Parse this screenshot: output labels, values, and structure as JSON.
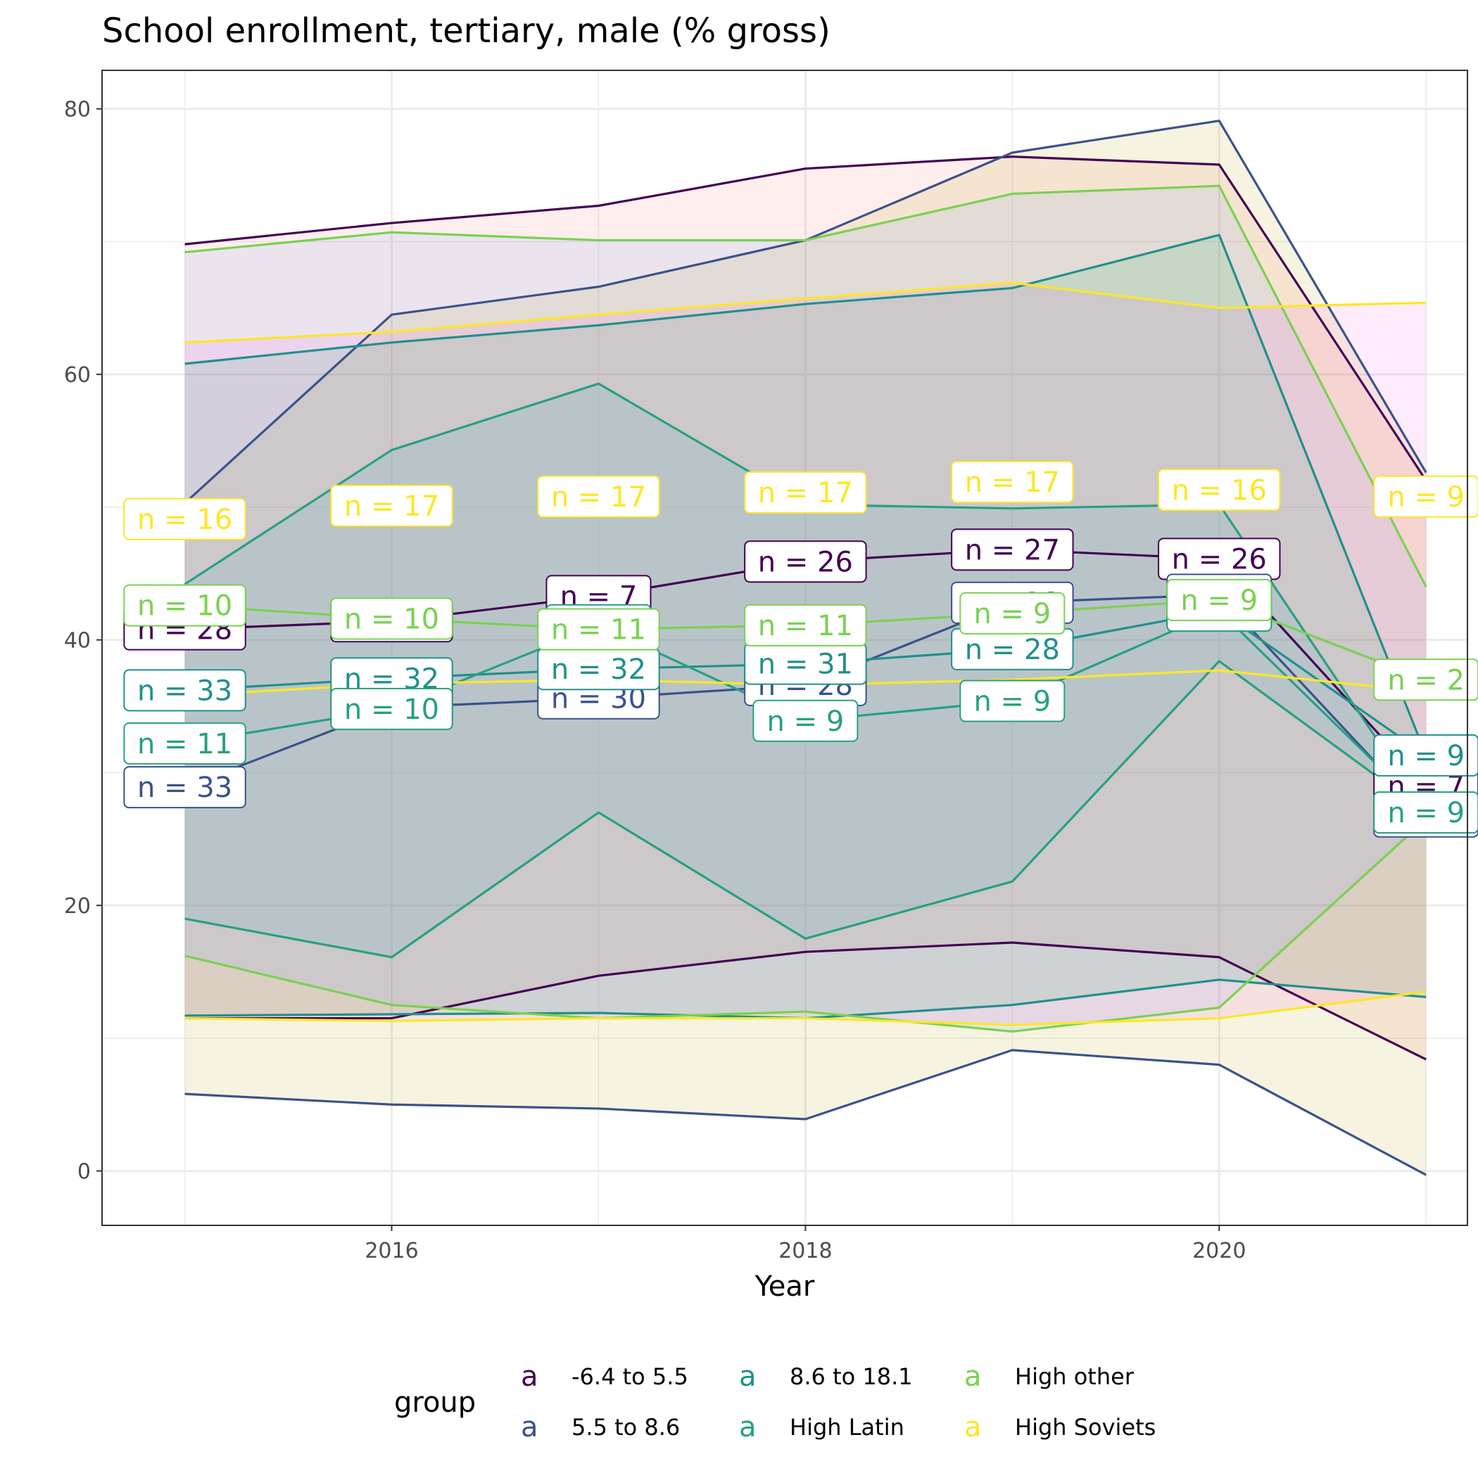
{
  "chart_data": {
    "type": "line",
    "title": "School enrollment, tertiary, male (% gross)",
    "xlabel": "Year",
    "ylabel": "",
    "xlim": [
      2014.6,
      2021.2
    ],
    "ylim": [
      -4.1,
      82.9
    ],
    "x_ticks": [
      2016,
      2018,
      2020
    ],
    "y_ticks": [
      0,
      20,
      40,
      60,
      80
    ],
    "grid": true,
    "legend": {
      "title": "group",
      "position": "bottom",
      "key_glyph": "a",
      "entries": [
        "-6.4 to 5.5",
        "5.5 to 8.6",
        "8.6 to 18.1",
        "High Latin",
        "High other",
        "High Soviets"
      ]
    },
    "x": [
      2015,
      2016,
      2017,
      2018,
      2019,
      2020,
      2021
    ],
    "series": [
      {
        "name": "-6.4 to 5.5",
        "color": "#440154",
        "fill": "#f8766d",
        "mean": [
          40.8,
          41.4,
          43.3,
          45.9,
          46.8,
          46.1,
          29.0
        ],
        "upper": [
          69.8,
          71.4,
          72.7,
          75.5,
          76.4,
          75.8,
          52.0
        ],
        "lower": [
          11.5,
          11.5,
          14.7,
          16.5,
          17.2,
          16.1,
          8.4
        ],
        "n": [
          28,
          28,
          7,
          26,
          27,
          26,
          7
        ]
      },
      {
        "name": "5.5 to 8.6",
        "color": "#3b528b",
        "fill": "#b79f00",
        "mean": [
          28.9,
          34.9,
          35.6,
          36.6,
          42.8,
          43.4,
          26.7
        ],
        "upper": [
          50.3,
          64.5,
          66.6,
          70.1,
          76.7,
          79.1,
          52.6
        ],
        "lower": [
          5.8,
          5.0,
          4.7,
          3.9,
          9.1,
          8.0,
          -0.3
        ],
        "n": [
          33,
          33,
          30,
          28,
          28,
          5,
          6
        ]
      },
      {
        "name": "8.6 to 18.1",
        "color": "#21908c",
        "fill": "#00ba38",
        "mean": [
          36.2,
          37.1,
          37.8,
          38.2,
          39.3,
          42.2,
          31.3
        ],
        "upper": [
          60.8,
          62.4,
          63.7,
          65.3,
          66.5,
          70.5,
          31.3
        ],
        "lower": [
          11.7,
          11.8,
          11.9,
          11.5,
          12.5,
          14.4,
          13.1
        ],
        "n": [
          33,
          32,
          32,
          31,
          28,
          7,
          9
        ]
      },
      {
        "name": "High Latin",
        "color": "#27a083",
        "fill": "#00bfc4",
        "mean": [
          32.2,
          34.8,
          41.1,
          33.9,
          35.4,
          42.2,
          27.0
        ],
        "upper": [
          44.2,
          54.3,
          59.3,
          50.2,
          49.9,
          50.2,
          27.0
        ],
        "lower": [
          19.0,
          16.1,
          27.0,
          17.5,
          21.8,
          38.4,
          27.0
        ],
        "n": [
          11,
          10,
          7,
          9,
          9,
          7,
          9
        ]
      },
      {
        "name": "High other",
        "color": "#7ad151",
        "fill": "#619cff",
        "mean": [
          42.6,
          41.6,
          40.8,
          41.1,
          42.0,
          43.0,
          37.0
        ],
        "upper": [
          69.2,
          70.7,
          70.1,
          70.1,
          73.6,
          74.2,
          44.0
        ],
        "lower": [
          16.2,
          12.5,
          11.5,
          12.0,
          10.5,
          12.3,
          26.5
        ],
        "n": [
          10,
          10,
          11,
          11,
          9,
          9,
          2
        ]
      },
      {
        "name": "High Soviets",
        "color": "#fde725",
        "fill": "#f564e3",
        "mean": [
          35.8,
          36.7,
          37.0,
          36.6,
          37.0,
          37.7,
          36.1
        ],
        "upper": [
          62.4,
          63.2,
          64.5,
          65.7,
          66.9,
          65.0,
          65.4
        ],
        "lower": [
          11.5,
          11.3,
          11.5,
          11.5,
          11.0,
          11.5,
          13.5
        ],
        "label_y": [
          49.1,
          50.1,
          50.8,
          51.1,
          51.9,
          51.3,
          50.8
        ],
        "n": [
          16,
          17,
          17,
          17,
          17,
          16,
          9
        ]
      }
    ]
  }
}
